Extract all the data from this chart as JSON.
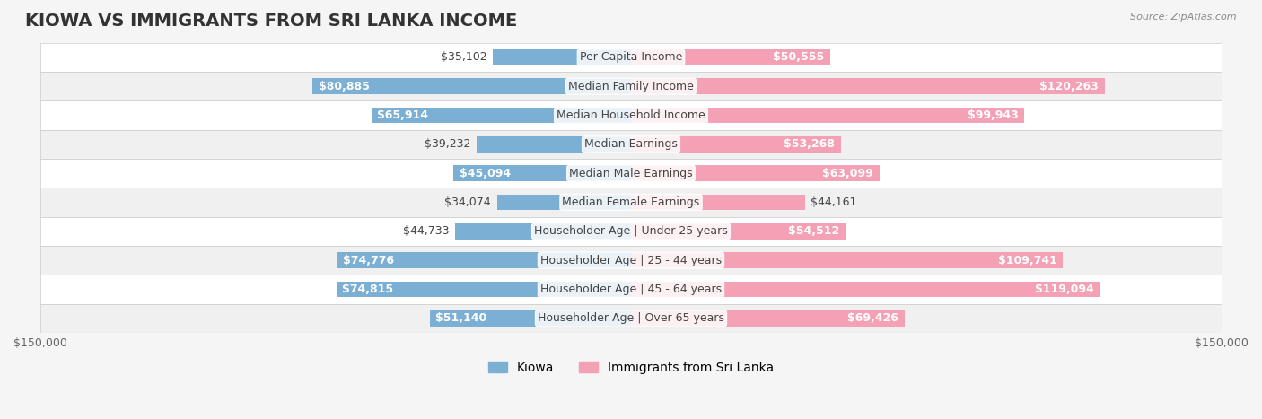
{
  "title": "KIOWA VS IMMIGRANTS FROM SRI LANKA INCOME",
  "source": "Source: ZipAtlas.com",
  "categories": [
    "Per Capita Income",
    "Median Family Income",
    "Median Household Income",
    "Median Earnings",
    "Median Male Earnings",
    "Median Female Earnings",
    "Householder Age | Under 25 years",
    "Householder Age | 25 - 44 years",
    "Householder Age | 45 - 64 years",
    "Householder Age | Over 65 years"
  ],
  "kiowa_values": [
    35102,
    80885,
    65914,
    39232,
    45094,
    34074,
    44733,
    74776,
    74815,
    51140
  ],
  "srilanka_values": [
    50555,
    120263,
    99943,
    53268,
    63099,
    44161,
    54512,
    109741,
    119094,
    69426
  ],
  "kiowa_labels": [
    "$35,102",
    "$80,885",
    "$65,914",
    "$39,232",
    "$45,094",
    "$34,074",
    "$44,733",
    "$74,776",
    "$74,815",
    "$51,140"
  ],
  "srilanka_labels": [
    "$50,555",
    "$120,263",
    "$99,943",
    "$53,268",
    "$63,099",
    "$44,161",
    "$54,512",
    "$109,741",
    "$119,094",
    "$69,426"
  ],
  "kiowa_color": "#7bafd4",
  "srilanka_color": "#f4a0b5",
  "kiowa_color_dark": "#5b8db8",
  "srilanka_color_dark": "#e8658a",
  "max_value": 150000,
  "background_color": "#f5f5f5",
  "row_bg_color": "#ffffff",
  "bar_height": 0.55,
  "title_fontsize": 14,
  "label_fontsize": 9,
  "axis_label_fontsize": 9,
  "legend_fontsize": 10
}
